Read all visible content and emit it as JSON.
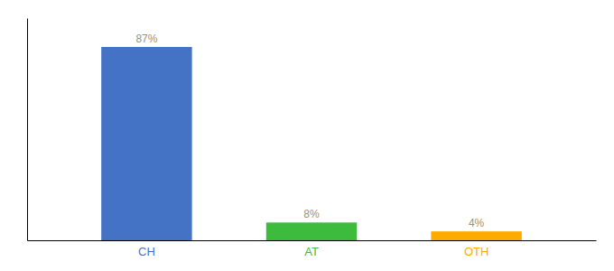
{
  "chart_data": {
    "type": "bar",
    "categories": [
      "CH",
      "AT",
      "OTH"
    ],
    "values": [
      87,
      8,
      4
    ],
    "value_labels": [
      "87%",
      "8%",
      "4%"
    ],
    "colors": [
      "#4472c4",
      "#3dbb3d",
      "#ffaa00"
    ],
    "ylim": [
      0,
      100
    ],
    "data_labels": true,
    "tick_labels": "x",
    "grid": false
  }
}
